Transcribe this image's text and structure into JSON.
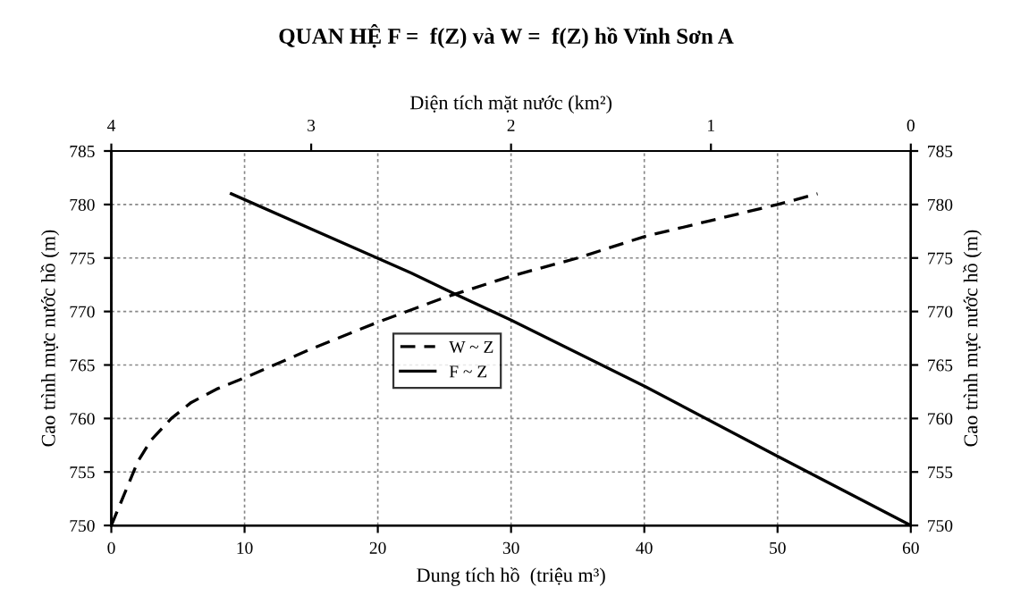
{
  "chart_data": {
    "type": "line",
    "title": "QUAN HỆ F =  f(Z) và W =  f(Z) hồ Vĩnh Sơn A",
    "xlabel": "Dung tích hồ  (triệu m³)",
    "ylabel": "Cao trình mực nước hồ (m)",
    "y2label": "Cao trình mực nước hồ (m)",
    "x2label": "Diện tích mặt nước (km²)",
    "xlim": [
      0,
      60
    ],
    "xticks": [
      0,
      10,
      20,
      30,
      40,
      50,
      60
    ],
    "x2lim": [
      4,
      0
    ],
    "x2ticks": [
      4,
      3,
      2,
      1,
      0
    ],
    "ylim": [
      750,
      785
    ],
    "yticks": [
      750,
      755,
      760,
      765,
      770,
      775,
      780,
      785
    ],
    "y2lim": [
      750,
      785
    ],
    "y2ticks": [
      750,
      755,
      760,
      765,
      770,
      775,
      780,
      785
    ],
    "grid": true,
    "legend": "center",
    "marker": "none",
    "series": [
      {
        "name": "W ~ Z",
        "color": "#000000",
        "line_style": "dashed",
        "x": [
          0,
          1,
          2,
          3,
          4.5,
          6,
          8,
          10,
          15,
          20,
          25,
          30,
          35,
          40,
          45,
          50,
          53
        ],
        "values": [
          750,
          753,
          756,
          758,
          760,
          761.5,
          762.8,
          763.8,
          766.5,
          769,
          771.3,
          773.3,
          775,
          777,
          778.5,
          780,
          781
        ]
      },
      {
        "name": "F ~ Z",
        "color": "#000000",
        "line_style": "solid",
        "axis": "x2",
        "x": [
          3.4,
          2.67,
          2.5,
          2.3,
          2.0,
          1.33,
          0.67,
          0
        ],
        "values": [
          781,
          775,
          773.6,
          771.8,
          769.2,
          763,
          756.5,
          750
        ]
      }
    ]
  }
}
